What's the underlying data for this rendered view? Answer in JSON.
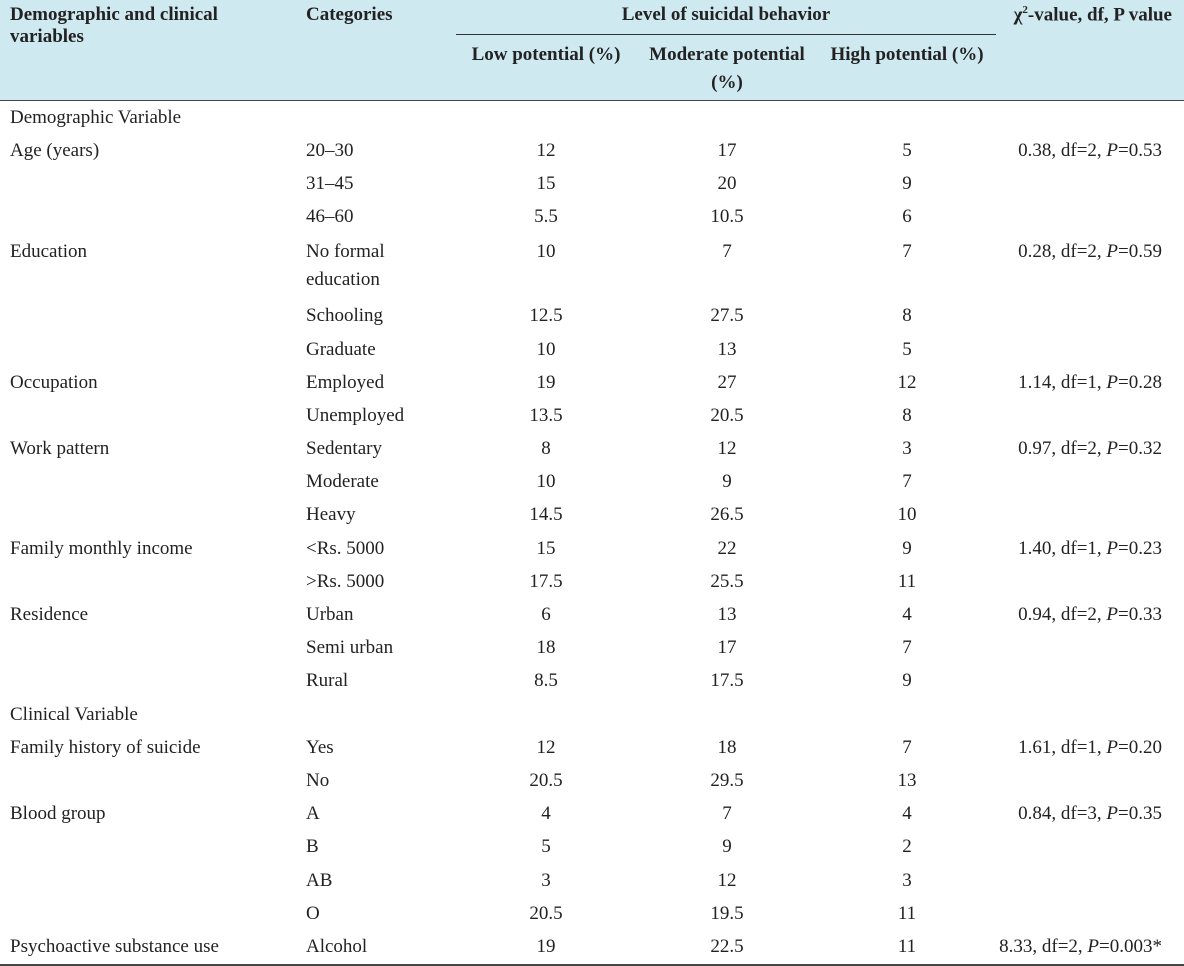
{
  "header": {
    "col1": "Demographic and clinical variables",
    "col2": "Categories",
    "group": "Level of suicidal behavior",
    "col3": "Low potential (%)",
    "col4": "Moderate potential (%)",
    "col5": "High potential (%)",
    "col6_chi": "χ",
    "col6_sup": "2",
    "col6_rest": "-value, df, P value"
  },
  "rows": [
    {
      "var": "Demographic Variable",
      "cat": "",
      "low": "",
      "mod": "",
      "high": "",
      "stat_pre": "",
      "stat_p": "",
      "stat_post": ""
    },
    {
      "var": "Age (years)",
      "cat": "20–30",
      "low": "12",
      "mod": "17",
      "high": "5",
      "stat_pre": "0.38, df=2, ",
      "stat_p": "P",
      "stat_post": "=0.53"
    },
    {
      "var": "",
      "cat": "31–45",
      "low": "15",
      "mod": "20",
      "high": "9",
      "stat_pre": "",
      "stat_p": "",
      "stat_post": ""
    },
    {
      "var": "",
      "cat": "46–60",
      "low": "5.5",
      "mod": "10.5",
      "high": "6",
      "stat_pre": "",
      "stat_p": "",
      "stat_post": ""
    },
    {
      "var": "Education",
      "cat": "No formal education",
      "low": "10",
      "mod": "7",
      "high": "7",
      "stat_pre": "0.28, df=2, ",
      "stat_p": "P",
      "stat_post": "=0.59"
    },
    {
      "var": "",
      "cat": "Schooling",
      "low": "12.5",
      "mod": "27.5",
      "high": "8",
      "stat_pre": "",
      "stat_p": "",
      "stat_post": ""
    },
    {
      "var": "",
      "cat": "Graduate",
      "low": "10",
      "mod": "13",
      "high": "5",
      "stat_pre": "",
      "stat_p": "",
      "stat_post": ""
    },
    {
      "var": "Occupation",
      "cat": "Employed",
      "low": "19",
      "mod": "27",
      "high": "12",
      "stat_pre": "1.14, df=1, ",
      "stat_p": "P",
      "stat_post": "=0.28"
    },
    {
      "var": "",
      "cat": "Unemployed",
      "low": "13.5",
      "mod": "20.5",
      "high": "8",
      "stat_pre": "",
      "stat_p": "",
      "stat_post": ""
    },
    {
      "var": "Work pattern",
      "cat": "Sedentary",
      "low": "8",
      "mod": "12",
      "high": "3",
      "stat_pre": "0.97, df=2, ",
      "stat_p": "P",
      "stat_post": "=0.32"
    },
    {
      "var": "",
      "cat": "Moderate",
      "low": "10",
      "mod": "9",
      "high": "7",
      "stat_pre": "",
      "stat_p": "",
      "stat_post": ""
    },
    {
      "var": "",
      "cat": "Heavy",
      "low": "14.5",
      "mod": "26.5",
      "high": "10",
      "stat_pre": "",
      "stat_p": "",
      "stat_post": ""
    },
    {
      "var": "Family monthly income",
      "cat": "<Rs. 5000",
      "low": "15",
      "mod": "22",
      "high": "9",
      "stat_pre": "1.40, df=1, ",
      "stat_p": "P",
      "stat_post": "=0.23"
    },
    {
      "var": "",
      "cat": ">Rs. 5000",
      "low": "17.5",
      "mod": "25.5",
      "high": "11",
      "stat_pre": "",
      "stat_p": "",
      "stat_post": ""
    },
    {
      "var": "Residence",
      "cat": "Urban",
      "low": "6",
      "mod": "13",
      "high": "4",
      "stat_pre": "0.94, df=2, ",
      "stat_p": "P",
      "stat_post": "=0.33"
    },
    {
      "var": "",
      "cat": "Semi urban",
      "low": "18",
      "mod": "17",
      "high": "7",
      "stat_pre": "",
      "stat_p": "",
      "stat_post": ""
    },
    {
      "var": "",
      "cat": "Rural",
      "low": "8.5",
      "mod": "17.5",
      "high": "9",
      "stat_pre": "",
      "stat_p": "",
      "stat_post": ""
    },
    {
      "var": "Clinical Variable",
      "cat": "",
      "low": "",
      "mod": "",
      "high": "",
      "stat_pre": "",
      "stat_p": "",
      "stat_post": ""
    },
    {
      "var": "Family history of suicide",
      "cat": "Yes",
      "low": "12",
      "mod": "18",
      "high": "7",
      "stat_pre": "1.61, df=1, ",
      "stat_p": "P",
      "stat_post": "=0.20"
    },
    {
      "var": "",
      "cat": "No",
      "low": "20.5",
      "mod": "29.5",
      "high": "13",
      "stat_pre": "",
      "stat_p": "",
      "stat_post": ""
    },
    {
      "var": "Blood group",
      "cat": "A",
      "low": "4",
      "mod": "7",
      "high": "4",
      "stat_pre": "0.84, df=3, ",
      "stat_p": "P",
      "stat_post": "=0.35"
    },
    {
      "var": "",
      "cat": "B",
      "low": "5",
      "mod": "9",
      "high": "2",
      "stat_pre": "",
      "stat_p": "",
      "stat_post": ""
    },
    {
      "var": "",
      "cat": "AB",
      "low": "3",
      "mod": "12",
      "high": "3",
      "stat_pre": "",
      "stat_p": "",
      "stat_post": ""
    },
    {
      "var": "",
      "cat": "O",
      "low": "20.5",
      "mod": "19.5",
      "high": "11",
      "stat_pre": "",
      "stat_p": "",
      "stat_post": ""
    },
    {
      "var": "Psychoactive substance use",
      "cat": "Alcohol",
      "low": "19",
      "mod": "22.5",
      "high": "11",
      "stat_pre": "8.33, df=2, ",
      "stat_p": "P",
      "stat_post": "=0.003*"
    }
  ]
}
